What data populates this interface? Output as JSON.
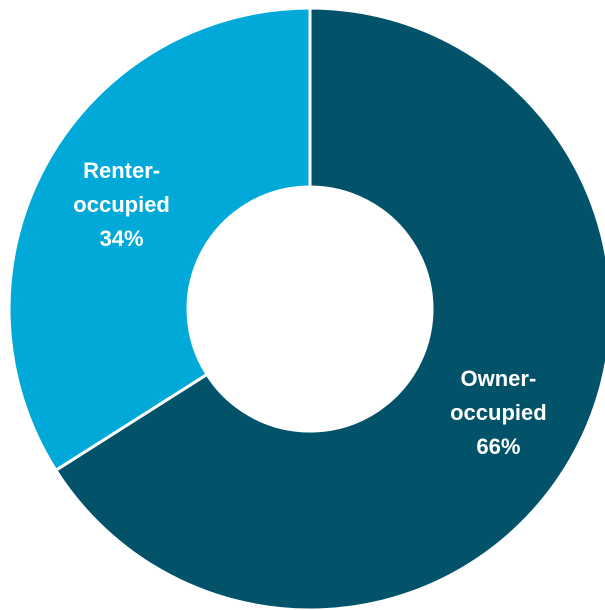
{
  "chart_data": {
    "type": "donut",
    "categories": [
      "Owner-occupied",
      "Renter-occupied"
    ],
    "values": [
      66,
      34
    ],
    "value_labels": [
      "66%",
      "34%"
    ],
    "colors": [
      "#02536a",
      "#00a9d8"
    ]
  }
}
